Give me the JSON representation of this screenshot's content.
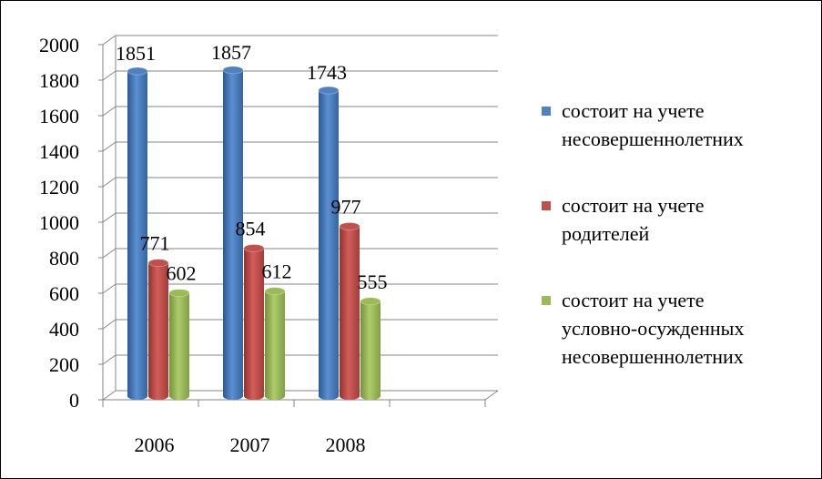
{
  "chart_data": {
    "type": "bar",
    "categories": [
      "2006",
      "2007",
      "2008",
      ""
    ],
    "series": [
      {
        "name": "состоит на учете несовершеннолетних",
        "values": [
          1851,
          1857,
          1743,
          null
        ],
        "color": "#4f81bd"
      },
      {
        "name": "состоит на учете родителей",
        "values": [
          771,
          854,
          977,
          null
        ],
        "color": "#c0504d"
      },
      {
        "name": "состоит на учете условно-осужденных несовершеннолетних",
        "values": [
          602,
          612,
          555,
          null
        ],
        "color": "#9bbb59"
      }
    ],
    "ylim": [
      0,
      2000
    ],
    "yticks": [
      "0",
      "200",
      "400",
      "600",
      "800",
      "1000",
      "1200",
      "1400",
      "1600",
      "1800",
      "2000"
    ],
    "data_labels": [
      [
        "1851",
        "771",
        "602"
      ],
      [
        "1857",
        "854",
        "612"
      ],
      [
        "1743",
        "977",
        "555"
      ]
    ],
    "grid": true,
    "legend_position": "right",
    "title": "",
    "xlabel": "",
    "ylabel": ""
  },
  "legend": {
    "items": [
      {
        "line1": "состоит на учете",
        "line2": "несовершеннолетних",
        "line3": "",
        "color": "#4f81bd"
      },
      {
        "line1": "состоит на учете",
        "line2": "родителей",
        "line3": "",
        "color": "#c0504d"
      },
      {
        "line1": "состоит на учете",
        "line2": "условно-осужденных",
        "line3": "несовершеннолетних",
        "color": "#9bbb59"
      }
    ]
  }
}
